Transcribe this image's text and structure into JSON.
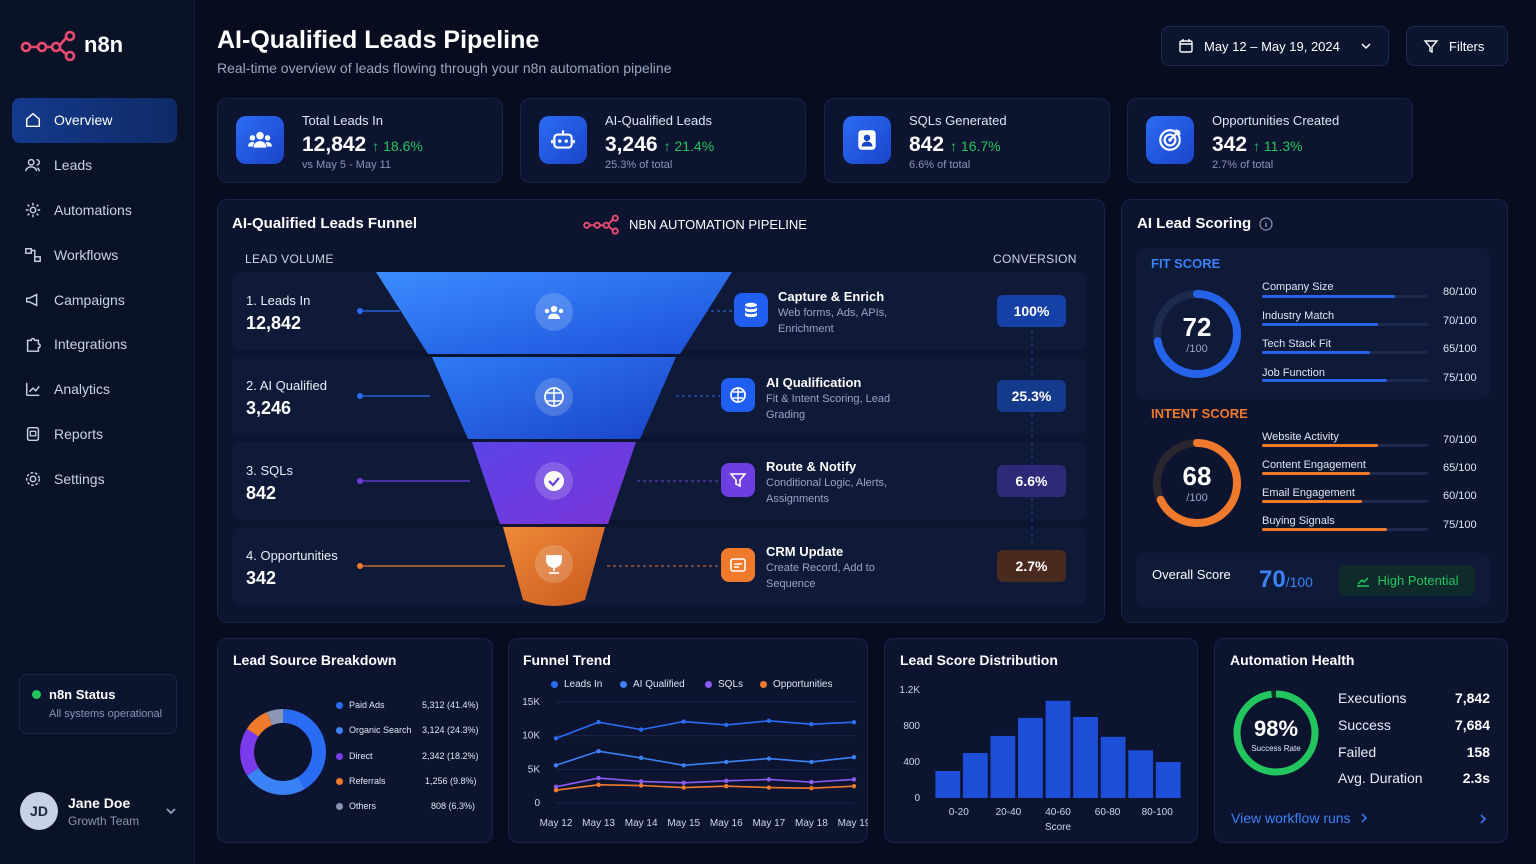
{
  "app": {
    "brand": "n8n",
    "accent": "#2b6cf5",
    "brand_color": "#ea4b71"
  },
  "sidebar": {
    "items": [
      {
        "label": "Overview",
        "icon": "home-icon",
        "active": true
      },
      {
        "label": "Leads",
        "icon": "users-icon"
      },
      {
        "label": "Automations",
        "icon": "automation-icon"
      },
      {
        "label": "Workflows",
        "icon": "workflow-icon"
      },
      {
        "label": "Campaigns",
        "icon": "megaphone-icon"
      },
      {
        "label": "Integrations",
        "icon": "puzzle-icon"
      },
      {
        "label": "Analytics",
        "icon": "analytics-icon"
      },
      {
        "label": "Reports",
        "icon": "report-icon"
      },
      {
        "label": "Settings",
        "icon": "gear-icon"
      }
    ],
    "status": {
      "title": "n8n Status",
      "subtitle": "All systems operational",
      "color": "#22c55e"
    },
    "user": {
      "initials": "JD",
      "name": "Jane Doe",
      "role": "Growth Team"
    }
  },
  "header": {
    "title": "AI-Qualified Leads Pipeline",
    "subtitle": "Real-time overview of leads flowing through your n8n automation pipeline",
    "date_range": "May 12 – May 19, 2024",
    "filters_label": "Filters"
  },
  "kpis": [
    {
      "label": "Total Leads In",
      "value": "12,842",
      "delta": "↑ 18.6%",
      "sub": "vs May 5 - May 11",
      "icon": "users-icon"
    },
    {
      "label": "AI-Qualified Leads",
      "value": "3,246",
      "delta": "↑ 21.4%",
      "sub": "25.3% of total",
      "icon": "robot-icon"
    },
    {
      "label": "SQLs Generated",
      "value": "842",
      "delta": "↑ 16.7%",
      "sub": "6.6% of total",
      "icon": "contact-icon"
    },
    {
      "label": "Opportunities Created",
      "value": "342",
      "delta": "↑ 11.3%",
      "sub": "2.7% of total",
      "icon": "target-icon"
    }
  ],
  "funnel": {
    "title": "AI-Qualified Leads Funnel",
    "pipeline_label": "NBN AUTOMATION PIPELINE",
    "volume_header": "LEAD VOLUME",
    "conversion_header": "CONVERSION",
    "stages": [
      {
        "name": "1. Leads In",
        "value": "12,842",
        "step_title": "Capture & Enrich",
        "step_desc": "Web forms, Ads, APIs, Enrichment",
        "conversion": "100%",
        "color": "#2b6cf5"
      },
      {
        "name": "2. AI Qualified",
        "value": "3,246",
        "step_title": "AI Qualification",
        "step_desc": "Fit & Intent Scoring, Lead Grading",
        "conversion": "25.3%",
        "color": "#2b6cf5"
      },
      {
        "name": "3. SQLs",
        "value": "842",
        "step_title": "Route & Notify",
        "step_desc": "Conditional Logic, Alerts, Assignments",
        "conversion": "6.6%",
        "color": "#6d3fe0"
      },
      {
        "name": "4. Opportunities",
        "value": "342",
        "step_title": "CRM Update",
        "step_desc": "Create Record, Add to Sequence",
        "conversion": "2.7%",
        "color": "#f07a2c"
      }
    ]
  },
  "scoring": {
    "title": "AI Lead Scoring",
    "fit": {
      "label": "FIT SCORE",
      "score": "72",
      "max": "/100",
      "fraction": 0.72,
      "metrics": [
        {
          "name": "Company Size",
          "value": "80/100",
          "fraction": 0.8
        },
        {
          "name": "Industry Match",
          "value": "70/100",
          "fraction": 0.7
        },
        {
          "name": "Tech Stack Fit",
          "value": "65/100",
          "fraction": 0.65
        },
        {
          "name": "Job Function",
          "value": "75/100",
          "fraction": 0.75
        }
      ]
    },
    "intent": {
      "label": "INTENT SCORE",
      "score": "68",
      "max": "/100",
      "fraction": 0.68,
      "metrics": [
        {
          "name": "Website Activity",
          "value": "70/100",
          "fraction": 0.7
        },
        {
          "name": "Content Engagement",
          "value": "65/100",
          "fraction": 0.65
        },
        {
          "name": "Email Engagement",
          "value": "60/100",
          "fraction": 0.6
        },
        {
          "name": "Buying Signals",
          "value": "75/100",
          "fraction": 0.75
        }
      ]
    },
    "overall": {
      "label": "Overall Score",
      "score": "70",
      "max": "/100",
      "badge": "High Potential"
    }
  },
  "lead_source": {
    "title": "Lead Source Breakdown",
    "items": [
      {
        "name": "Paid Ads",
        "value": "5,312 (41.4%)",
        "share": 41.4,
        "color": "#2b6cf5"
      },
      {
        "name": "Organic Search",
        "value": "3,124 (24.3%)",
        "share": 24.3,
        "color": "#3b82f6"
      },
      {
        "name": "Direct",
        "value": "2,342 (18.2%)",
        "share": 18.2,
        "color": "#7c3aed"
      },
      {
        "name": "Referrals",
        "value": "1,256 (9.8%)",
        "share": 9.8,
        "color": "#f07a2c"
      },
      {
        "name": "Others",
        "value": "808 (6.3%)",
        "share": 6.3,
        "color": "#8b96b3"
      }
    ]
  },
  "chart_data": [
    {
      "type": "line",
      "title": "Funnel Trend",
      "x": [
        "May 12",
        "May 13",
        "May 14",
        "May 15",
        "May 16",
        "May 17",
        "May 18",
        "May 19"
      ],
      "ylim": [
        0,
        15000
      ],
      "yticks": [
        "0",
        "5K",
        "10K",
        "15K"
      ],
      "grid": true,
      "legend": "top",
      "series": [
        {
          "name": "Leads In",
          "color": "#2b6cf5",
          "values": [
            9600,
            12000,
            10900,
            12100,
            11600,
            12200,
            11700,
            12000
          ]
        },
        {
          "name": "AI Qualified",
          "color": "#3b82f6",
          "values": [
            5600,
            7700,
            6700,
            5600,
            6100,
            6600,
            6100,
            6800
          ]
        },
        {
          "name": "SQLs",
          "color": "#8b5cf6",
          "values": [
            2400,
            3700,
            3200,
            3000,
            3300,
            3500,
            3100,
            3500
          ]
        },
        {
          "name": "Opportunities",
          "color": "#f07a2c",
          "values": [
            1900,
            2700,
            2600,
            2300,
            2500,
            2300,
            2200,
            2500
          ]
        }
      ]
    },
    {
      "type": "bar",
      "title": "Lead Score Distribution",
      "xlabel": "Score",
      "ylim": [
        0,
        1200
      ],
      "yticks": [
        "0",
        "400",
        "800",
        "1.2K"
      ],
      "xticks": [
        "0-20",
        "20-40",
        "40-60",
        "60-80",
        "80-100"
      ],
      "color": "#1d4ed8",
      "values": [
        300,
        500,
        690,
        890,
        1080,
        900,
        680,
        530,
        400
      ]
    }
  ],
  "health": {
    "title": "Automation Health",
    "rate": "98%",
    "rate_label": "Success Rate",
    "fraction": 0.98,
    "rows": [
      {
        "label": "Executions",
        "value": "7,842"
      },
      {
        "label": "Success",
        "value": "7,684"
      },
      {
        "label": "Failed",
        "value": "158"
      },
      {
        "label": "Avg. Duration",
        "value": "2.3s"
      }
    ],
    "link": "View workflow runs"
  }
}
